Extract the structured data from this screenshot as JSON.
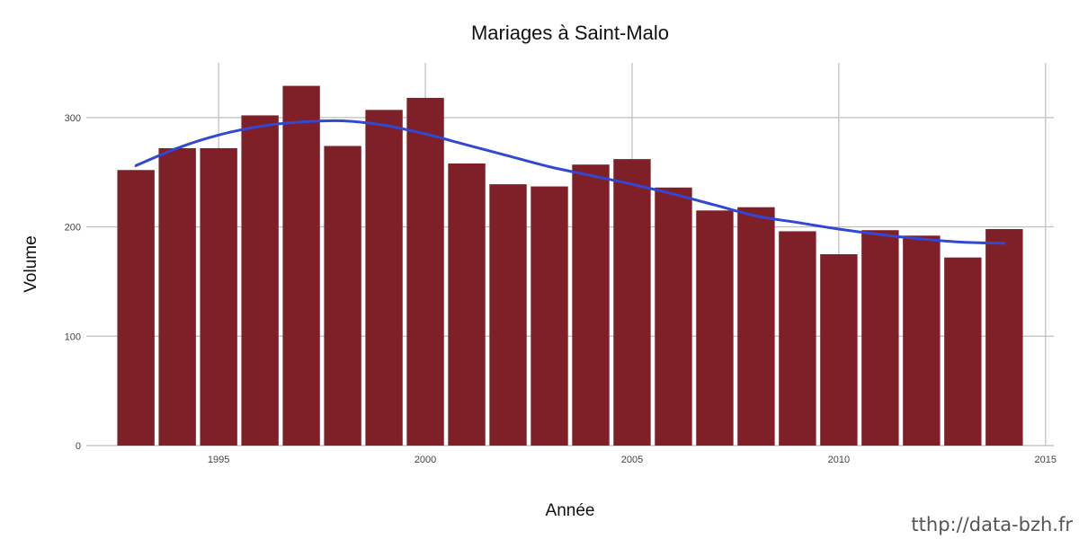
{
  "chart_data": {
    "type": "bar",
    "title": "Mariages à Saint-Malo",
    "xlabel": "Année",
    "ylabel": "Volume",
    "x": [
      1993,
      1994,
      1995,
      1996,
      1997,
      1998,
      1999,
      2000,
      2001,
      2002,
      2003,
      2004,
      2005,
      2006,
      2007,
      2008,
      2009,
      2010,
      2011,
      2012,
      2013,
      2014
    ],
    "values": [
      252,
      272,
      272,
      302,
      329,
      274,
      307,
      318,
      258,
      239,
      237,
      257,
      262,
      236,
      215,
      218,
      196,
      175,
      197,
      192,
      172,
      198
    ],
    "smooth": {
      "x": [
        1993,
        1994,
        1995,
        1996,
        1997,
        1998,
        1999,
        2000,
        2001,
        2002,
        2003,
        2004,
        2005,
        2006,
        2007,
        2008,
        2009,
        2010,
        2011,
        2012,
        2013,
        2014
      ],
      "y": [
        256,
        272,
        284,
        292,
        296,
        297,
        293,
        285,
        275,
        265,
        255,
        247,
        239,
        230,
        220,
        210,
        204,
        198,
        193,
        189,
        186,
        185
      ]
    },
    "xticks": [
      1995,
      2000,
      2005,
      2010,
      2015
    ],
    "xtick_labels": [
      "1995",
      "2000",
      "2005",
      "2010",
      "2015"
    ],
    "yticks": [
      0,
      100,
      200,
      300
    ],
    "ytick_labels": [
      "0",
      "100",
      "200",
      "300"
    ],
    "xlim": [
      1991.8,
      2015.2
    ],
    "ylim": [
      0,
      350
    ],
    "grid": true,
    "colors": {
      "bar": "#7f1f27",
      "smooth": "#3348d1",
      "grid": "#bdbdbd"
    }
  },
  "watermark": "tthp://data-bzh.fr"
}
